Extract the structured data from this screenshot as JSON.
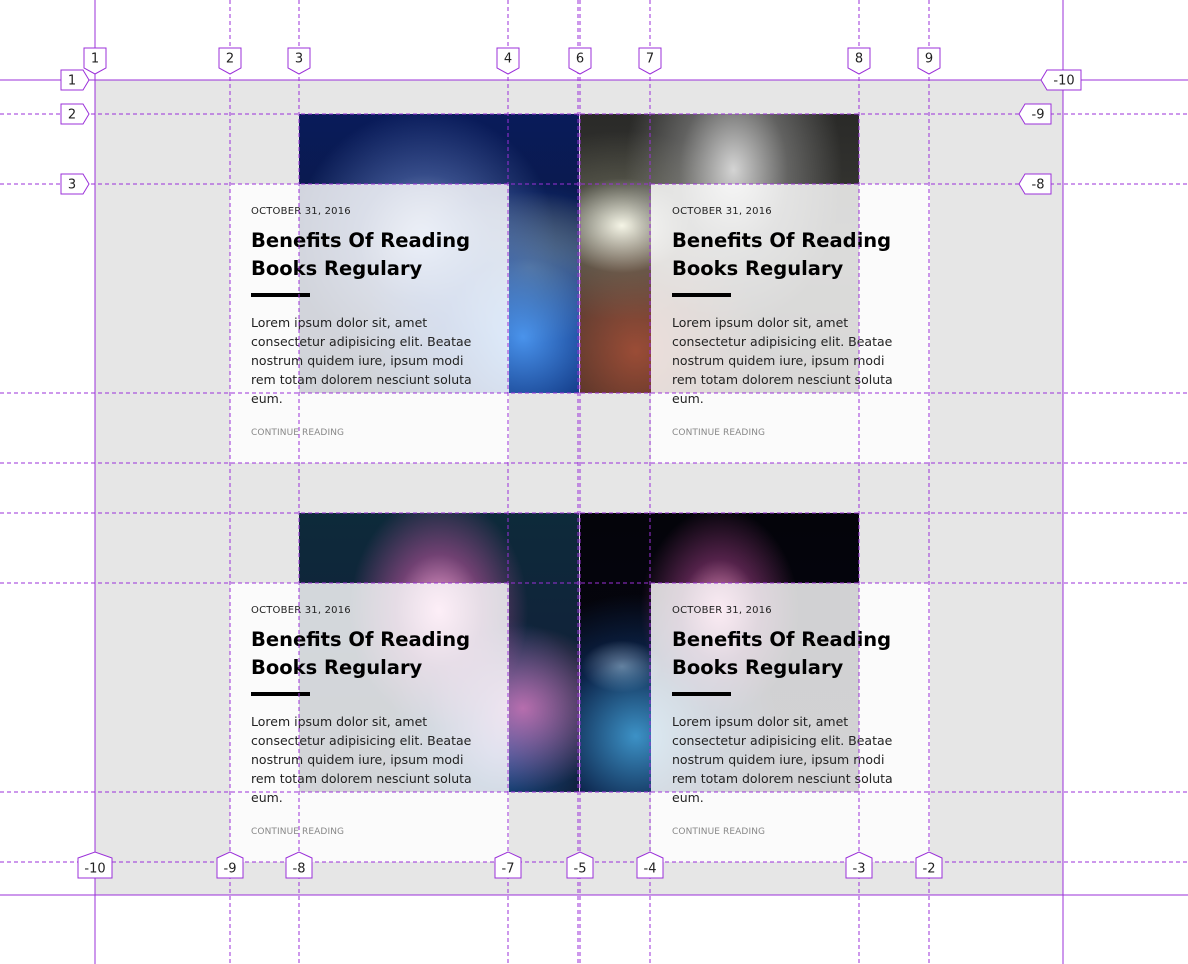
{
  "posts": [
    {
      "date": "OCTOBER 31, 2016",
      "title_line1": "Benefits Of Reading",
      "title_line2": "Books Regulary",
      "excerpt": "Lorem ipsum dolor sit, amet consectetur adipisicing elit. Beatae nostrum quidem iure, ipsum modi rem totam dolorem nesciunt soluta eum.",
      "link": "CONTINUE READING"
    },
    {
      "date": "OCTOBER 31, 2016",
      "title_line1": "Benefits Of Reading",
      "title_line2": "Books Regulary",
      "excerpt": "Lorem ipsum dolor sit, amet consectetur adipisicing elit. Beatae nostrum quidem iure, ipsum modi rem totam dolorem nesciunt soluta eum.",
      "link": "CONTINUE READING"
    },
    {
      "date": "OCTOBER 31, 2016",
      "title_line1": "Benefits Of Reading",
      "title_line2": "Books Regulary",
      "excerpt": "Lorem ipsum dolor sit, amet consectetur adipisicing elit. Beatae nostrum quidem iure, ipsum modi rem totam dolorem nesciunt soluta eum.",
      "link": "CONTINUE READING"
    },
    {
      "date": "OCTOBER 31, 2016",
      "title_line1": "Benefits Of Reading",
      "title_line2": "Books Regulary",
      "excerpt": "Lorem ipsum dolor sit, amet consectetur adipisicing elit. Beatae nostrum quidem iure, ipsum modi rem totam dolorem nesciunt soluta eum.",
      "link": "CONTINUE READING"
    }
  ],
  "grid_overlay": {
    "color": "#9b30d9",
    "columns_top": [
      "1",
      "2",
      "3",
      "4",
      "6",
      "7",
      "8",
      "9"
    ],
    "columns_bottom": [
      "-10",
      "-9",
      "-8",
      "-7",
      "-5",
      "-4",
      "-3",
      "-2"
    ],
    "rows_left": [
      "1",
      "2",
      "3"
    ],
    "rows_right": [
      "-10",
      "-9",
      "-8"
    ]
  }
}
